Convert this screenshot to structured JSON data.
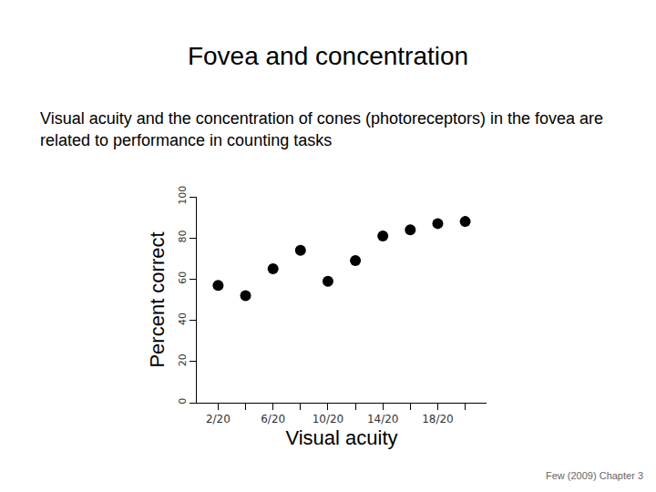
{
  "slide": {
    "title": "Fovea and concentration",
    "text": "Visual acuity and the concentration of cones (photoreceptors) in the fovea are related to performance in counting tasks",
    "source": "Few (2009) Chapter 3"
  },
  "chart_data": {
    "type": "scatter",
    "x_label": "Visual acuity",
    "y_label": "Percent correct",
    "categories": [
      "2/20",
      null,
      "6/20",
      null,
      "10/20",
      null,
      "14/20",
      null,
      "18/20",
      null
    ],
    "values": [
      57,
      52,
      65,
      74,
      59,
      69,
      81,
      84,
      87,
      88
    ],
    "color": "#000000",
    "marker": "circle",
    "ylim": [
      0,
      100
    ],
    "yticks": [
      0,
      20,
      40,
      60,
      80,
      100
    ],
    "grid": false
  }
}
